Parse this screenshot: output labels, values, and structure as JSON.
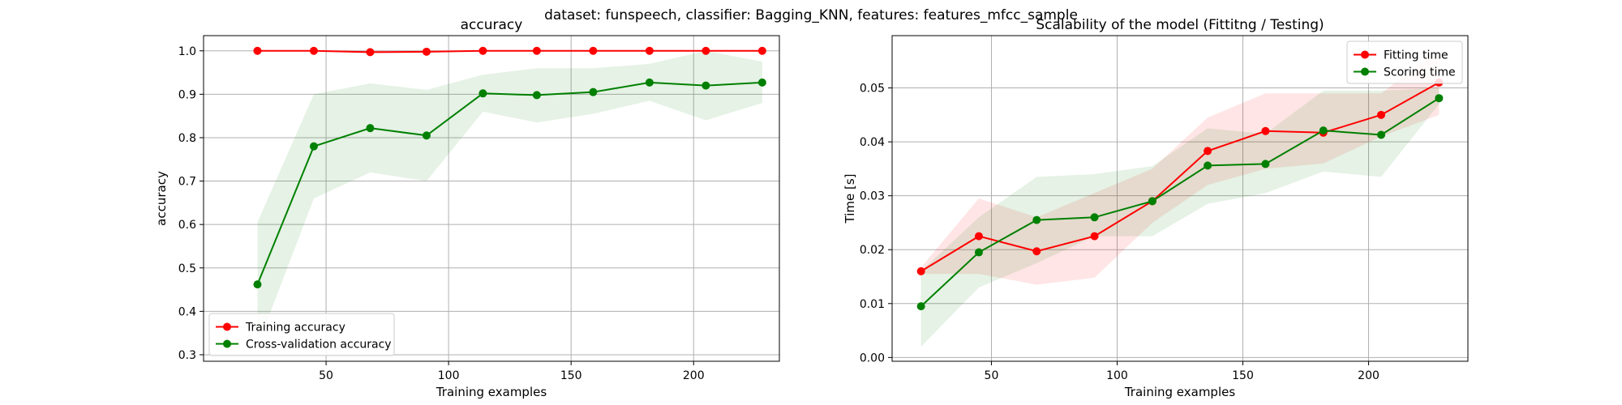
{
  "suptitle": "dataset: funspeech, classifier: Bagging_KNN, features: features_mfcc_sample",
  "colors": {
    "train": "#ff0000",
    "cv": "#008000"
  },
  "chart_data": [
    {
      "type": "line",
      "title": "accuracy",
      "xlabel": "Training examples",
      "ylabel": "accuracy",
      "xlim": [
        0,
        235
      ],
      "ylim": [
        0.285,
        1.035
      ],
      "xticks": [
        50,
        100,
        150,
        200
      ],
      "yticks": [
        0.3,
        0.4,
        0.5,
        0.6,
        0.7,
        0.8,
        0.9,
        1.0
      ],
      "grid": true,
      "legend_position": "lower-left",
      "x": [
        22,
        45,
        68,
        91,
        114,
        136,
        159,
        182,
        205,
        228
      ],
      "series": [
        {
          "name": "Training accuracy",
          "color": "#ff0000",
          "values": [
            1.0,
            1.0,
            0.997,
            0.998,
            1.0,
            1.0,
            1.0,
            1.0,
            1.0,
            1.0
          ],
          "band_low": [
            1.0,
            0.999,
            0.994,
            0.995,
            1.0,
            1.0,
            1.0,
            1.0,
            1.0,
            1.0
          ],
          "band_high": [
            1.0,
            1.0,
            1.0,
            1.0,
            1.0,
            1.0,
            1.0,
            1.0,
            1.0,
            1.0
          ]
        },
        {
          "name": "Cross-validation accuracy",
          "color": "#008000",
          "values": [
            0.462,
            0.78,
            0.822,
            0.805,
            0.902,
            0.898,
            0.905,
            0.927,
            0.92,
            0.927
          ],
          "band_low": [
            0.32,
            0.66,
            0.72,
            0.7,
            0.86,
            0.835,
            0.855,
            0.885,
            0.84,
            0.88
          ],
          "band_high": [
            0.605,
            0.9,
            0.925,
            0.91,
            0.945,
            0.96,
            0.96,
            0.97,
            1.0,
            0.975
          ]
        }
      ]
    },
    {
      "type": "line",
      "title": "Scalability of the model (Fittitng / Testing)",
      "xlabel": "Training examples",
      "ylabel": "Time [s]",
      "xlim": [
        10.5,
        239.5
      ],
      "ylim": [
        -0.0007,
        0.0597
      ],
      "xticks": [
        50,
        100,
        150,
        200
      ],
      "yticks": [
        0.0,
        0.01,
        0.02,
        0.03,
        0.04,
        0.05
      ],
      "ytick_labels": [
        "0.00",
        "0.01",
        "0.02",
        "0.03",
        "0.04",
        "0.05"
      ],
      "grid": true,
      "legend_position": "upper-right",
      "x": [
        22,
        45,
        68,
        91,
        114,
        136,
        159,
        182,
        205,
        228
      ],
      "series": [
        {
          "name": "Fitting time",
          "color": "#ff0000",
          "values": [
            0.016,
            0.0225,
            0.0197,
            0.0225,
            0.029,
            0.0383,
            0.042,
            0.0417,
            0.045,
            0.051
          ],
          "band_low": [
            0.0155,
            0.0155,
            0.0135,
            0.0148,
            0.025,
            0.032,
            0.035,
            0.036,
            0.041,
            0.045
          ],
          "band_high": [
            0.0167,
            0.0295,
            0.026,
            0.0305,
            0.035,
            0.0445,
            0.049,
            0.049,
            0.049,
            0.057
          ]
        },
        {
          "name": "Scoring time",
          "color": "#008000",
          "values": [
            0.0095,
            0.0195,
            0.0255,
            0.026,
            0.029,
            0.0356,
            0.0359,
            0.0421,
            0.0413,
            0.0481
          ],
          "band_low": [
            0.002,
            0.013,
            0.0175,
            0.0225,
            0.0225,
            0.0285,
            0.0305,
            0.0345,
            0.0335,
            0.047
          ],
          "band_high": [
            0.016,
            0.026,
            0.0335,
            0.034,
            0.0355,
            0.0425,
            0.0415,
            0.0495,
            0.0495,
            0.05
          ]
        }
      ]
    }
  ]
}
